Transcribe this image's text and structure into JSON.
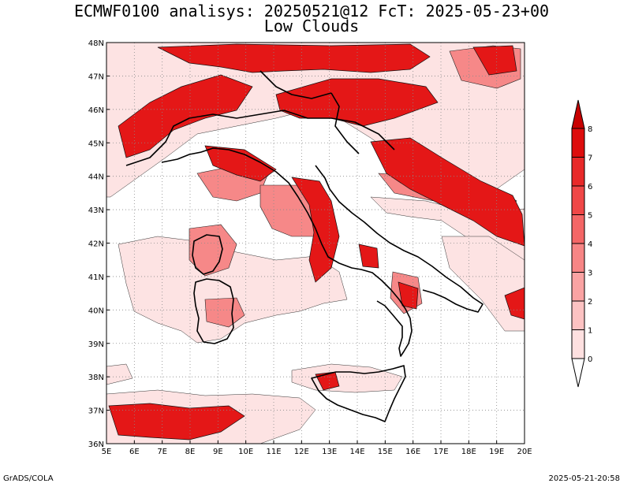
{
  "title": "ECMWF0100 analisys: 20250521@12 FcT: 2025-05-23+00",
  "subtitle": "Low Clouds",
  "credit": "GrADS/COLA",
  "timestamp": "2025-05-21-20:58",
  "chart_data": {
    "type": "heatmap",
    "variable": "Low Clouds",
    "lon_range": [
      5,
      20
    ],
    "lat_range": [
      36,
      48
    ],
    "lon_ticks": [
      "5E",
      "6E",
      "7E",
      "8E",
      "9E",
      "10E",
      "11E",
      "12E",
      "13E",
      "14E",
      "15E",
      "16E",
      "17E",
      "18E",
      "19E",
      "20E"
    ],
    "lat_ticks": [
      "36N",
      "37N",
      "38N",
      "39N",
      "40N",
      "41N",
      "42N",
      "43N",
      "44N",
      "45N",
      "46N",
      "47N",
      "48N"
    ],
    "grid": true,
    "colorbar": {
      "position": "right",
      "levels": [
        "0",
        "1",
        "2",
        "3",
        "4",
        "5",
        "6",
        "7",
        "8"
      ],
      "colors": [
        "#ffffff",
        "#fee0e0",
        "#fcc2c2",
        "#faa3a3",
        "#f78585",
        "#f46666",
        "#f04747",
        "#e82929",
        "#dd0d0d",
        "#c80000"
      ]
    }
  }
}
